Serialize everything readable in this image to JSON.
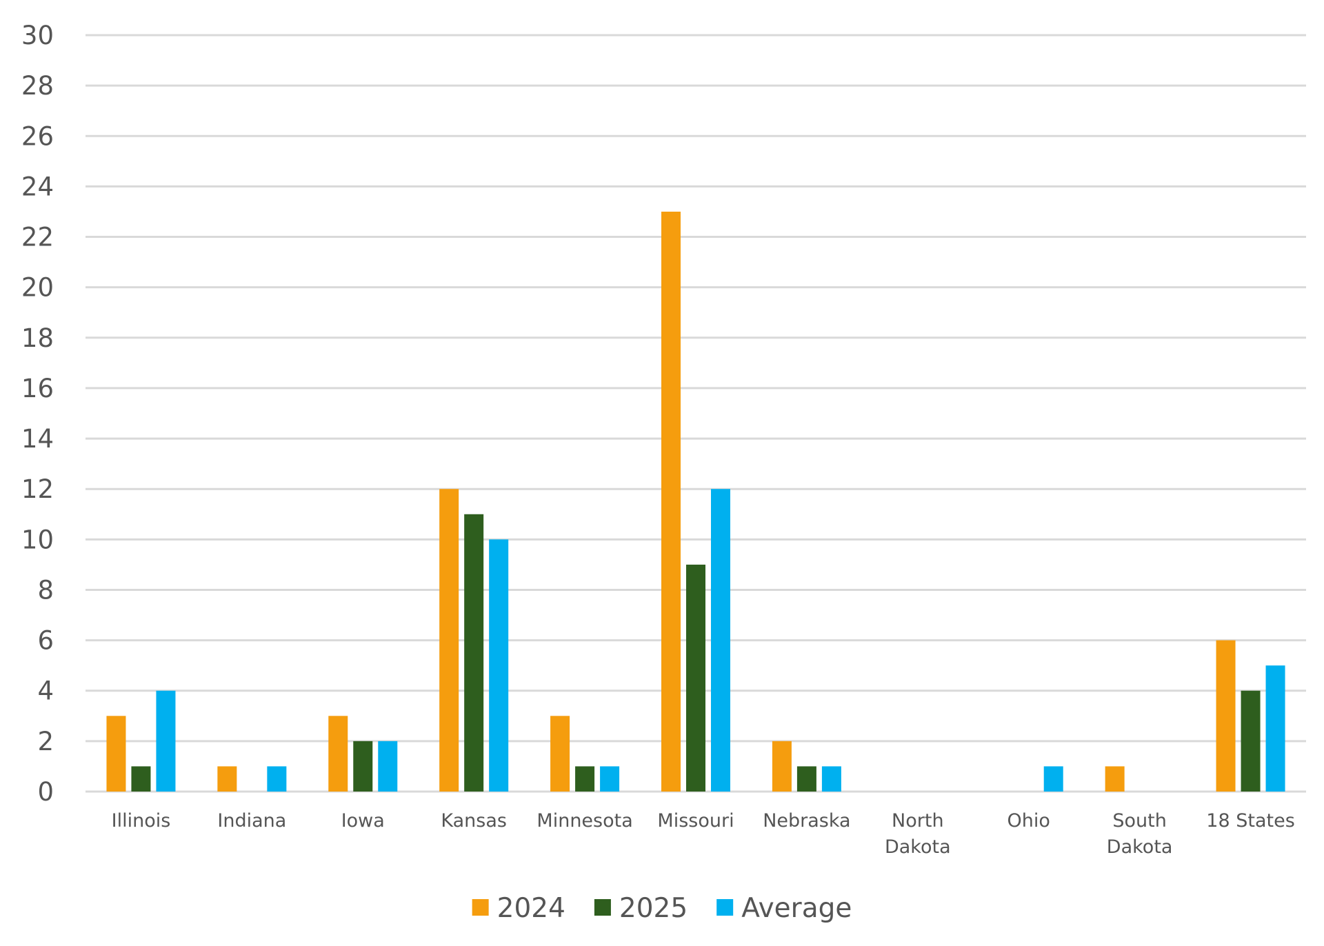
{
  "chart_data": {
    "type": "bar",
    "categories": [
      [
        "Illinois"
      ],
      [
        "Indiana"
      ],
      [
        "Iowa"
      ],
      [
        "Kansas"
      ],
      [
        "Minnesota"
      ],
      [
        "Missouri"
      ],
      [
        "Nebraska"
      ],
      [
        "North",
        "Dakota"
      ],
      [
        "Ohio"
      ],
      [
        "South",
        "Dakota"
      ],
      [
        "18 States"
      ]
    ],
    "series": [
      {
        "name": "2024",
        "color": "#f59d0e",
        "values": [
          3,
          1,
          3,
          12,
          3,
          23,
          2,
          0,
          0,
          1,
          6
        ]
      },
      {
        "name": "2025",
        "color": "#2e5e1e",
        "values": [
          1,
          0,
          2,
          11,
          1,
          9,
          1,
          0,
          0,
          0,
          4
        ]
      },
      {
        "name": "Average",
        "color": "#00b0ef",
        "values": [
          4,
          1,
          2,
          10,
          1,
          12,
          1,
          0,
          1,
          0,
          5
        ]
      }
    ],
    "ylim": [
      0,
      30
    ],
    "yticks": [
      "0",
      "2",
      "4",
      "6",
      "8",
      "10",
      "12",
      "14",
      "16",
      "18",
      "20",
      "22",
      "24",
      "26",
      "28",
      "30"
    ],
    "grid": true,
    "legend": "bottom"
  }
}
